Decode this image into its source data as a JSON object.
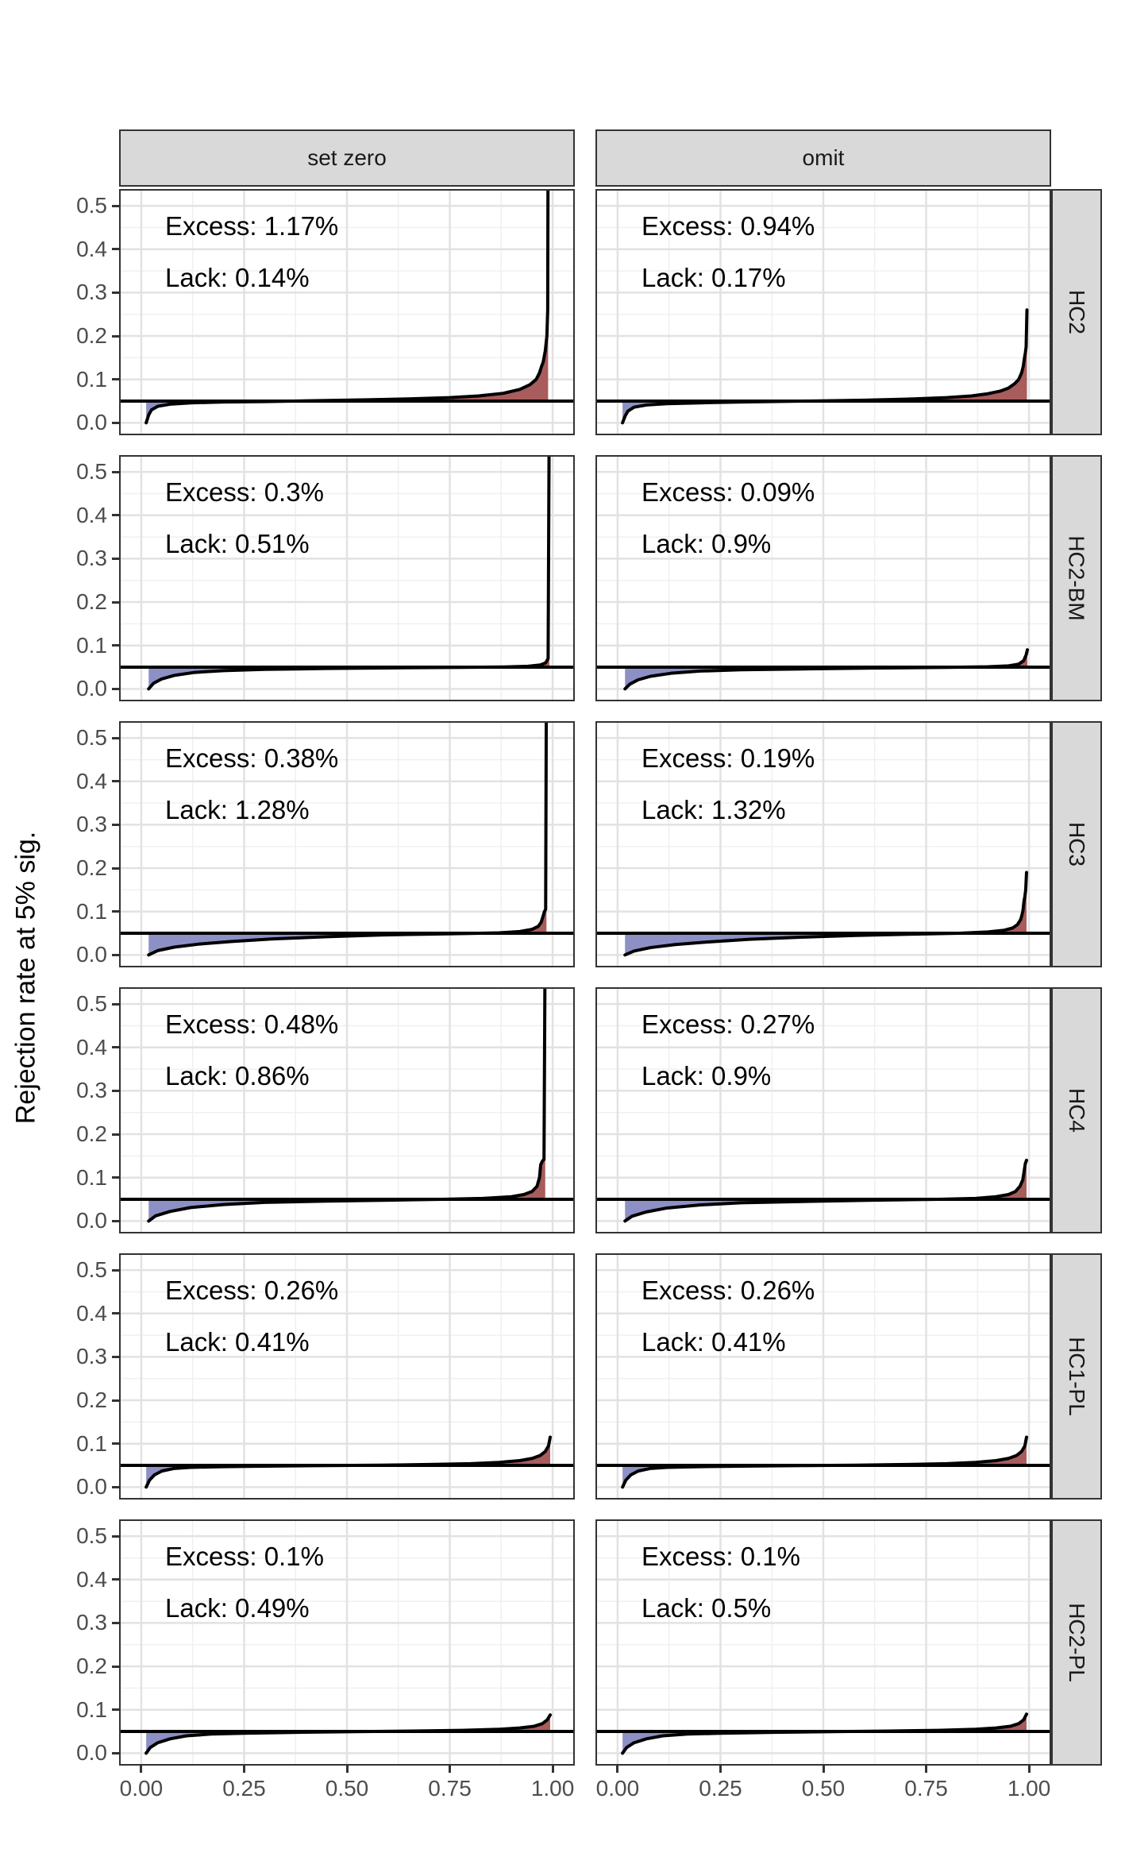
{
  "labels": {
    "y_axis_title": "Rejection rate at 5% sig."
  },
  "colors": {
    "excess_fill": "#A85C5C",
    "lack_fill": "#8D90C5",
    "curve": "#000000",
    "ref_line": "#000000",
    "grid_major": "#E2E2E2",
    "grid_minor": "#F0F0F0",
    "panel_border": "#333333",
    "strip_bg": "#D9D9D9",
    "strip_text": "#1A1A1A",
    "tick_text": "#4D4D4D"
  },
  "chart_data": {
    "type": "area",
    "title": "",
    "xlabel": "",
    "ylabel": "Rejection rate at 5% sig.",
    "facet_cols": [
      "set zero",
      "omit"
    ],
    "facet_rows": [
      "HC2",
      "HC2-BM",
      "HC3",
      "HC4",
      "HC1-PL",
      "HC2-PL"
    ],
    "x_ticks": [
      {
        "value": 0.0,
        "label": "0.00"
      },
      {
        "value": 0.25,
        "label": "0.25"
      },
      {
        "value": 0.5,
        "label": "0.50"
      },
      {
        "value": 0.75,
        "label": "0.75"
      },
      {
        "value": 1.0,
        "label": "1.00"
      }
    ],
    "y_ticks": [
      {
        "value": 0.0,
        "label": "0.0"
      },
      {
        "value": 0.1,
        "label": "0.1"
      },
      {
        "value": 0.2,
        "label": "0.2"
      },
      {
        "value": 0.3,
        "label": "0.3"
      },
      {
        "value": 0.4,
        "label": "0.4"
      },
      {
        "value": 0.5,
        "label": "0.5"
      }
    ],
    "x_minor_ticks": [
      0.125,
      0.375,
      0.625,
      0.875
    ],
    "y_minor_ticks": [
      0.05,
      0.15,
      0.25,
      0.35,
      0.45
    ],
    "xlim": [
      -0.05,
      1.05
    ],
    "ylim": [
      -0.025,
      0.535
    ],
    "ref_line": 0.05,
    "grid": true,
    "panels": [
      {
        "row": "HC2",
        "col": "set zero",
        "excess_label": "Excess: 1.17%",
        "lack_label": "Lack: 0.14%",
        "curve": [
          [
            0.012,
            0.0
          ],
          [
            0.018,
            0.018
          ],
          [
            0.025,
            0.03
          ],
          [
            0.04,
            0.038
          ],
          [
            0.07,
            0.043
          ],
          [
            0.12,
            0.046
          ],
          [
            0.2,
            0.048
          ],
          [
            0.3,
            0.049
          ],
          [
            0.42,
            0.051
          ],
          [
            0.55,
            0.053
          ],
          [
            0.65,
            0.055
          ],
          [
            0.75,
            0.058
          ],
          [
            0.82,
            0.062
          ],
          [
            0.88,
            0.068
          ],
          [
            0.92,
            0.077
          ],
          [
            0.945,
            0.088
          ],
          [
            0.96,
            0.1
          ],
          [
            0.968,
            0.115
          ],
          [
            0.973,
            0.13
          ],
          [
            0.977,
            0.14
          ],
          [
            0.982,
            0.165
          ],
          [
            0.986,
            0.2
          ],
          [
            0.988,
            0.26
          ],
          [
            0.989,
            0.7
          ]
        ]
      },
      {
        "row": "HC2",
        "col": "omit",
        "excess_label": "Excess: 0.94%",
        "lack_label": "Lack: 0.17%",
        "curve": [
          [
            0.012,
            0.0
          ],
          [
            0.018,
            0.015
          ],
          [
            0.025,
            0.027
          ],
          [
            0.04,
            0.036
          ],
          [
            0.07,
            0.041
          ],
          [
            0.12,
            0.044
          ],
          [
            0.2,
            0.046
          ],
          [
            0.3,
            0.048
          ],
          [
            0.45,
            0.05
          ],
          [
            0.6,
            0.052
          ],
          [
            0.72,
            0.055
          ],
          [
            0.8,
            0.058
          ],
          [
            0.86,
            0.062
          ],
          [
            0.9,
            0.067
          ],
          [
            0.93,
            0.073
          ],
          [
            0.95,
            0.08
          ],
          [
            0.965,
            0.09
          ],
          [
            0.975,
            0.1
          ],
          [
            0.982,
            0.115
          ],
          [
            0.986,
            0.13
          ],
          [
            0.989,
            0.15
          ],
          [
            0.991,
            0.16
          ],
          [
            0.993,
            0.175
          ],
          [
            0.995,
            0.26
          ]
        ]
      },
      {
        "row": "HC2-BM",
        "col": "set zero",
        "excess_label": "Excess: 0.3%",
        "lack_label": "Lack: 0.51%",
        "curve": [
          [
            0.018,
            0.0
          ],
          [
            0.03,
            0.013
          ],
          [
            0.05,
            0.023
          ],
          [
            0.08,
            0.031
          ],
          [
            0.13,
            0.038
          ],
          [
            0.2,
            0.042
          ],
          [
            0.3,
            0.045
          ],
          [
            0.45,
            0.047
          ],
          [
            0.62,
            0.0485
          ],
          [
            0.78,
            0.0495
          ],
          [
            0.88,
            0.0505
          ],
          [
            0.94,
            0.052
          ],
          [
            0.97,
            0.055
          ],
          [
            0.983,
            0.06
          ],
          [
            0.989,
            0.07
          ],
          [
            0.992,
            0.7
          ]
        ]
      },
      {
        "row": "HC2-BM",
        "col": "omit",
        "excess_label": "Excess: 0.09%",
        "lack_label": "Lack: 0.9%",
        "curve": [
          [
            0.018,
            0.0
          ],
          [
            0.03,
            0.011
          ],
          [
            0.05,
            0.021
          ],
          [
            0.08,
            0.029
          ],
          [
            0.13,
            0.036
          ],
          [
            0.2,
            0.041
          ],
          [
            0.3,
            0.044
          ],
          [
            0.45,
            0.046
          ],
          [
            0.62,
            0.048
          ],
          [
            0.8,
            0.0495
          ],
          [
            0.9,
            0.051
          ],
          [
            0.95,
            0.053
          ],
          [
            0.975,
            0.057
          ],
          [
            0.987,
            0.065
          ],
          [
            0.993,
            0.078
          ],
          [
            0.996,
            0.09
          ]
        ]
      },
      {
        "row": "HC3",
        "col": "set zero",
        "excess_label": "Excess: 0.38%",
        "lack_label": "Lack: 1.28%",
        "curve": [
          [
            0.018,
            0.0
          ],
          [
            0.04,
            0.01
          ],
          [
            0.08,
            0.018
          ],
          [
            0.14,
            0.025
          ],
          [
            0.22,
            0.031
          ],
          [
            0.32,
            0.037
          ],
          [
            0.45,
            0.042
          ],
          [
            0.58,
            0.046
          ],
          [
            0.7,
            0.048
          ],
          [
            0.8,
            0.0495
          ],
          [
            0.87,
            0.051
          ],
          [
            0.92,
            0.054
          ],
          [
            0.95,
            0.059
          ],
          [
            0.965,
            0.066
          ],
          [
            0.972,
            0.075
          ],
          [
            0.977,
            0.09
          ],
          [
            0.98,
            0.1
          ],
          [
            0.983,
            0.105
          ],
          [
            0.985,
            0.7
          ]
        ]
      },
      {
        "row": "HC3",
        "col": "omit",
        "excess_label": "Excess: 0.19%",
        "lack_label": "Lack: 1.32%",
        "curve": [
          [
            0.018,
            0.0
          ],
          [
            0.04,
            0.009
          ],
          [
            0.08,
            0.017
          ],
          [
            0.14,
            0.024
          ],
          [
            0.22,
            0.03
          ],
          [
            0.32,
            0.036
          ],
          [
            0.45,
            0.041
          ],
          [
            0.58,
            0.045
          ],
          [
            0.72,
            0.048
          ],
          [
            0.83,
            0.05
          ],
          [
            0.9,
            0.053
          ],
          [
            0.94,
            0.057
          ],
          [
            0.96,
            0.062
          ],
          [
            0.972,
            0.07
          ],
          [
            0.98,
            0.082
          ],
          [
            0.985,
            0.1
          ],
          [
            0.988,
            0.125
          ],
          [
            0.99,
            0.135
          ],
          [
            0.992,
            0.15
          ],
          [
            0.994,
            0.19
          ]
        ]
      },
      {
        "row": "HC4",
        "col": "set zero",
        "excess_label": "Excess: 0.48%",
        "lack_label": "Lack: 0.86%",
        "curve": [
          [
            0.018,
            0.0
          ],
          [
            0.035,
            0.012
          ],
          [
            0.07,
            0.022
          ],
          [
            0.12,
            0.031
          ],
          [
            0.2,
            0.038
          ],
          [
            0.3,
            0.043
          ],
          [
            0.45,
            0.046
          ],
          [
            0.6,
            0.048
          ],
          [
            0.73,
            0.05
          ],
          [
            0.83,
            0.052
          ],
          [
            0.9,
            0.056
          ],
          [
            0.93,
            0.061
          ],
          [
            0.95,
            0.068
          ],
          [
            0.962,
            0.08
          ],
          [
            0.968,
            0.1
          ],
          [
            0.971,
            0.13
          ],
          [
            0.975,
            0.138
          ],
          [
            0.979,
            0.142
          ],
          [
            0.982,
            0.7
          ]
        ]
      },
      {
        "row": "HC4",
        "col": "omit",
        "excess_label": "Excess: 0.27%",
        "lack_label": "Lack: 0.9%",
        "curve": [
          [
            0.018,
            0.0
          ],
          [
            0.035,
            0.011
          ],
          [
            0.07,
            0.021
          ],
          [
            0.12,
            0.03
          ],
          [
            0.2,
            0.037
          ],
          [
            0.3,
            0.042
          ],
          [
            0.45,
            0.045
          ],
          [
            0.62,
            0.048
          ],
          [
            0.78,
            0.05
          ],
          [
            0.87,
            0.052
          ],
          [
            0.92,
            0.056
          ],
          [
            0.95,
            0.061
          ],
          [
            0.967,
            0.068
          ],
          [
            0.978,
            0.08
          ],
          [
            0.985,
            0.095
          ],
          [
            0.989,
            0.12
          ],
          [
            0.991,
            0.132
          ],
          [
            0.994,
            0.14
          ]
        ]
      },
      {
        "row": "HC1-PL",
        "col": "set zero",
        "excess_label": "Excess: 0.26%",
        "lack_label": "Lack: 0.41%",
        "curve": [
          [
            0.012,
            0.0
          ],
          [
            0.02,
            0.016
          ],
          [
            0.032,
            0.028
          ],
          [
            0.05,
            0.037
          ],
          [
            0.08,
            0.043
          ],
          [
            0.12,
            0.0455
          ],
          [
            0.2,
            0.047
          ],
          [
            0.32,
            0.0485
          ],
          [
            0.45,
            0.0495
          ],
          [
            0.58,
            0.0505
          ],
          [
            0.7,
            0.052
          ],
          [
            0.8,
            0.054
          ],
          [
            0.87,
            0.057
          ],
          [
            0.92,
            0.061
          ],
          [
            0.95,
            0.066
          ],
          [
            0.97,
            0.073
          ],
          [
            0.982,
            0.082
          ],
          [
            0.99,
            0.095
          ],
          [
            0.994,
            0.115
          ]
        ]
      },
      {
        "row": "HC1-PL",
        "col": "omit",
        "excess_label": "Excess: 0.26%",
        "lack_label": "Lack: 0.41%",
        "curve": [
          [
            0.012,
            0.0
          ],
          [
            0.02,
            0.016
          ],
          [
            0.032,
            0.028
          ],
          [
            0.05,
            0.037
          ],
          [
            0.08,
            0.043
          ],
          [
            0.12,
            0.0455
          ],
          [
            0.2,
            0.047
          ],
          [
            0.32,
            0.0485
          ],
          [
            0.45,
            0.0495
          ],
          [
            0.58,
            0.0505
          ],
          [
            0.7,
            0.052
          ],
          [
            0.8,
            0.054
          ],
          [
            0.87,
            0.057
          ],
          [
            0.92,
            0.061
          ],
          [
            0.95,
            0.066
          ],
          [
            0.97,
            0.073
          ],
          [
            0.982,
            0.082
          ],
          [
            0.99,
            0.095
          ],
          [
            0.994,
            0.115
          ]
        ]
      },
      {
        "row": "HC2-PL",
        "col": "set zero",
        "excess_label": "Excess: 0.1%",
        "lack_label": "Lack: 0.49%",
        "curve": [
          [
            0.012,
            0.0
          ],
          [
            0.022,
            0.013
          ],
          [
            0.04,
            0.024
          ],
          [
            0.07,
            0.033
          ],
          [
            0.11,
            0.04
          ],
          [
            0.17,
            0.044
          ],
          [
            0.25,
            0.046
          ],
          [
            0.38,
            0.048
          ],
          [
            0.52,
            0.0495
          ],
          [
            0.66,
            0.051
          ],
          [
            0.78,
            0.0525
          ],
          [
            0.87,
            0.055
          ],
          [
            0.92,
            0.058
          ],
          [
            0.955,
            0.062
          ],
          [
            0.975,
            0.068
          ],
          [
            0.987,
            0.077
          ],
          [
            0.994,
            0.088
          ]
        ]
      },
      {
        "row": "HC2-PL",
        "col": "omit",
        "excess_label": "Excess: 0.1%",
        "lack_label": "Lack: 0.5%",
        "curve": [
          [
            0.012,
            0.0
          ],
          [
            0.022,
            0.013
          ],
          [
            0.04,
            0.024
          ],
          [
            0.07,
            0.033
          ],
          [
            0.11,
            0.04
          ],
          [
            0.17,
            0.044
          ],
          [
            0.25,
            0.046
          ],
          [
            0.38,
            0.048
          ],
          [
            0.52,
            0.0495
          ],
          [
            0.66,
            0.051
          ],
          [
            0.78,
            0.0525
          ],
          [
            0.87,
            0.055
          ],
          [
            0.92,
            0.058
          ],
          [
            0.955,
            0.062
          ],
          [
            0.975,
            0.068
          ],
          [
            0.987,
            0.077
          ],
          [
            0.994,
            0.09
          ]
        ]
      }
    ]
  }
}
